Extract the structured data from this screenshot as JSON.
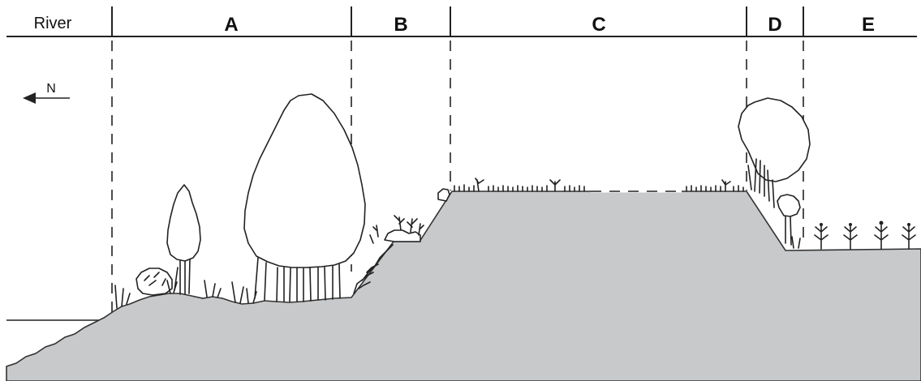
{
  "header": {
    "river_label": "River",
    "zones": [
      {
        "id": "A",
        "label": "A"
      },
      {
        "id": "B",
        "label": "B"
      },
      {
        "id": "C",
        "label": "C"
      },
      {
        "id": "D",
        "label": "D"
      },
      {
        "id": "E",
        "label": "E"
      }
    ]
  },
  "compass": {
    "label": "N",
    "direction": "left",
    "icon": "north-arrow-icon"
  },
  "colors": {
    "ground": "#c8c9cb",
    "ink": "#222222",
    "background": "#ffffff"
  }
}
